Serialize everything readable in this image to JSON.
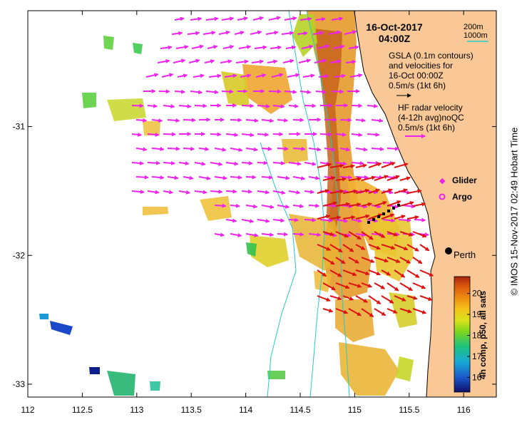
{
  "map": {
    "date_label": "16-Oct-2017",
    "time_label": "04:00Z",
    "contour_legend": {
      "line1": "200m",
      "line2": "1000m"
    },
    "gsla_note": {
      "line1": "GSLA (0.1m contours)",
      "line2": "and velocities for",
      "line3": "16-Oct 00:00Z",
      "line4": "0.5m/s (1kt 6h)"
    },
    "hf_note": {
      "line1": "HF radar velocity",
      "line2": "(4-12h avg)noQC",
      "line3": "0.5m/s (1kt 6h)"
    },
    "glider_label": "Glider",
    "argo_label": "Argo",
    "city_label": "Perth",
    "colorbar": {
      "label": "4h comp, p50, all sats",
      "ticks": [
        "16",
        "17",
        "18",
        "19",
        "20"
      ],
      "range": [
        15.3,
        20.8
      ]
    },
    "x_ticks": [
      "112",
      "112.5",
      "113",
      "113.5",
      "114",
      "114.5",
      "115",
      "115.5",
      "116"
    ],
    "y_ticks": [
      "-31",
      "-32",
      "-33"
    ],
    "lon_range": [
      112,
      116.3
    ],
    "lat_range": [
      -33.1,
      -30.1
    ],
    "credit": "© IMOS 15-Nov-2017 02:49 Hobart Time",
    "colors": {
      "land": "#f9c896",
      "hf_arrow": "#ee22ee",
      "gsla_arrow": "#dd1111",
      "contour": "#22cccc"
    }
  }
}
